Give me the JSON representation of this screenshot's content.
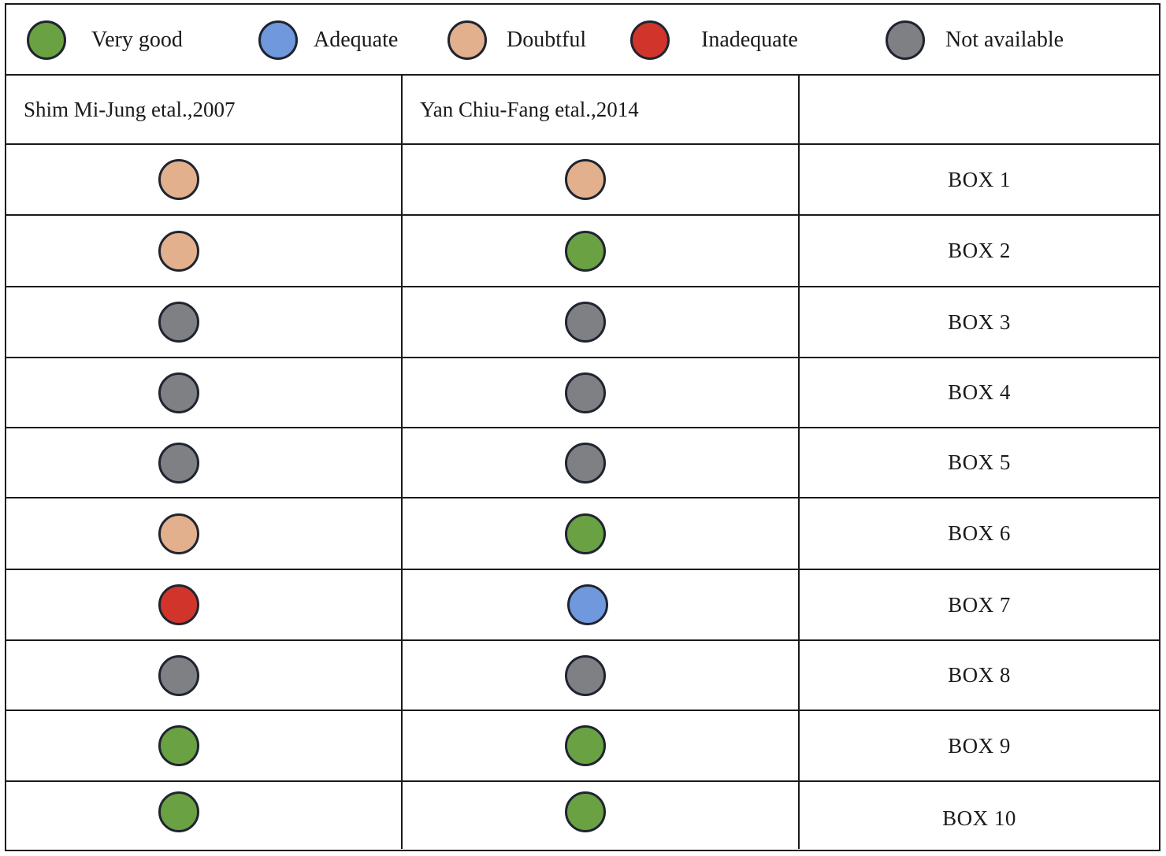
{
  "legend": [
    {
      "key": "very_good",
      "label": "Very good",
      "color": "#6aa142"
    },
    {
      "key": "adequate",
      "label": "Adequate",
      "color": "#6f99dc"
    },
    {
      "key": "doubtful",
      "label": "Doubtful",
      "color": "#e2b08c"
    },
    {
      "key": "inadequate",
      "label": "Inadequate",
      "color": "#d1342b"
    },
    {
      "key": "not_available",
      "label": "Not available",
      "color": "#7f8084"
    }
  ],
  "table": {
    "headers": [
      "Shim Mi-Jung etal.,2007",
      "Yan Chiu-Fang etal.,2014",
      ""
    ],
    "rows": [
      {
        "label": "BOX 1",
        "ratings": [
          "doubtful",
          "doubtful"
        ]
      },
      {
        "label": "BOX 2",
        "ratings": [
          "doubtful",
          "very_good"
        ]
      },
      {
        "label": "BOX 3",
        "ratings": [
          "not_available",
          "not_available"
        ]
      },
      {
        "label": "BOX 4",
        "ratings": [
          "not_available",
          "not_available"
        ]
      },
      {
        "label": "BOX 5",
        "ratings": [
          "not_available",
          "not_available"
        ]
      },
      {
        "label": "BOX 6",
        "ratings": [
          "doubtful",
          "very_good"
        ]
      },
      {
        "label": "BOX 7",
        "ratings": [
          "inadequate",
          "adequate"
        ]
      },
      {
        "label": "BOX 8",
        "ratings": [
          "not_available",
          "not_available"
        ]
      },
      {
        "label": "BOX 9",
        "ratings": [
          "very_good",
          "very_good"
        ]
      },
      {
        "label": "BOX 10",
        "ratings": [
          "very_good",
          "very_good"
        ]
      }
    ]
  }
}
